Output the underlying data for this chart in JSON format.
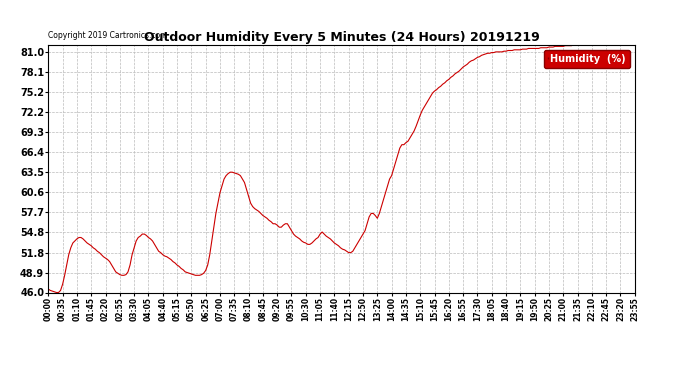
{
  "title": "Outdoor Humidity Every 5 Minutes (24 Hours) 20191219",
  "copyright": "Copyright 2019 Cartronics.com",
  "legend_label": "Humidity  (%)",
  "line_color": "#cc0000",
  "bg_color": "#ffffff",
  "grid_color": "#aaaaaa",
  "ylim": [
    46.0,
    82.0
  ],
  "yticks": [
    46.0,
    48.9,
    51.8,
    54.8,
    57.7,
    60.6,
    63.5,
    66.4,
    69.3,
    72.2,
    75.2,
    78.1,
    81.0
  ],
  "humidity_values": [
    46.5,
    46.3,
    46.2,
    46.1,
    46.0,
    46.0,
    46.3,
    47.2,
    48.5,
    50.0,
    51.5,
    52.5,
    53.2,
    53.5,
    53.8,
    54.0,
    54.0,
    53.8,
    53.5,
    53.2,
    53.0,
    52.8,
    52.5,
    52.3,
    52.0,
    51.8,
    51.5,
    51.2,
    51.0,
    50.8,
    50.5,
    50.0,
    49.5,
    49.0,
    48.8,
    48.6,
    48.5,
    48.5,
    48.6,
    49.0,
    50.0,
    51.5,
    52.5,
    53.5,
    54.0,
    54.2,
    54.5,
    54.5,
    54.3,
    54.0,
    53.8,
    53.5,
    53.0,
    52.5,
    52.0,
    51.8,
    51.5,
    51.3,
    51.2,
    51.0,
    50.8,
    50.5,
    50.3,
    50.0,
    49.8,
    49.5,
    49.3,
    49.0,
    48.9,
    48.8,
    48.7,
    48.6,
    48.5,
    48.5,
    48.5,
    48.6,
    48.8,
    49.2,
    50.0,
    51.5,
    53.5,
    55.5,
    57.5,
    59.0,
    60.5,
    61.5,
    62.5,
    63.0,
    63.3,
    63.5,
    63.5,
    63.4,
    63.3,
    63.2,
    63.0,
    62.5,
    62.0,
    61.0,
    60.0,
    59.0,
    58.5,
    58.2,
    58.0,
    57.8,
    57.5,
    57.2,
    57.0,
    56.8,
    56.5,
    56.3,
    56.0,
    56.0,
    55.8,
    55.5,
    55.5,
    55.8,
    56.0,
    56.0,
    55.5,
    55.0,
    54.5,
    54.2,
    54.0,
    53.8,
    53.5,
    53.3,
    53.2,
    53.0,
    53.0,
    53.2,
    53.5,
    53.8,
    54.0,
    54.5,
    54.8,
    54.5,
    54.2,
    54.0,
    53.8,
    53.5,
    53.2,
    53.0,
    52.8,
    52.5,
    52.3,
    52.2,
    52.0,
    51.8,
    51.8,
    52.0,
    52.5,
    53.0,
    53.5,
    54.0,
    54.5,
    55.0,
    56.0,
    57.0,
    57.5,
    57.5,
    57.2,
    56.8,
    57.5,
    58.5,
    59.5,
    60.5,
    61.5,
    62.5,
    63.0,
    64.0,
    65.0,
    66.0,
    67.0,
    67.5,
    67.5,
    67.8,
    68.0,
    68.5,
    69.0,
    69.5,
    70.2,
    71.0,
    71.8,
    72.5,
    73.0,
    73.5,
    74.0,
    74.5,
    75.0,
    75.3,
    75.5,
    75.8,
    76.0,
    76.3,
    76.5,
    76.8,
    77.0,
    77.3,
    77.5,
    77.8,
    78.0,
    78.2,
    78.5,
    78.8,
    79.0,
    79.2,
    79.5,
    79.7,
    79.8,
    80.0,
    80.2,
    80.3,
    80.5,
    80.6,
    80.7,
    80.8,
    80.8,
    80.9,
    80.9,
    81.0,
    81.0,
    81.0,
    81.0,
    81.1,
    81.1,
    81.2,
    81.2,
    81.2,
    81.3,
    81.3,
    81.3,
    81.3,
    81.4,
    81.4,
    81.4,
    81.5,
    81.5,
    81.5,
    81.5,
    81.5,
    81.5,
    81.6,
    81.6,
    81.6,
    81.6,
    81.7,
    81.7,
    81.7,
    81.8,
    81.8,
    81.8,
    81.8,
    81.8,
    81.9,
    81.9,
    81.9,
    81.9,
    82.0,
    82.0,
    82.0,
    82.0,
    82.0,
    82.0,
    82.0,
    82.0,
    82.0,
    82.0,
    82.0,
    82.0,
    82.0,
    82.0,
    82.0,
    82.0,
    82.0,
    82.0,
    82.0,
    82.0,
    82.0,
    82.0,
    82.0,
    82.0,
    82.0,
    82.0,
    82.0,
    82.0,
    82.0,
    82.0,
    82.0
  ]
}
